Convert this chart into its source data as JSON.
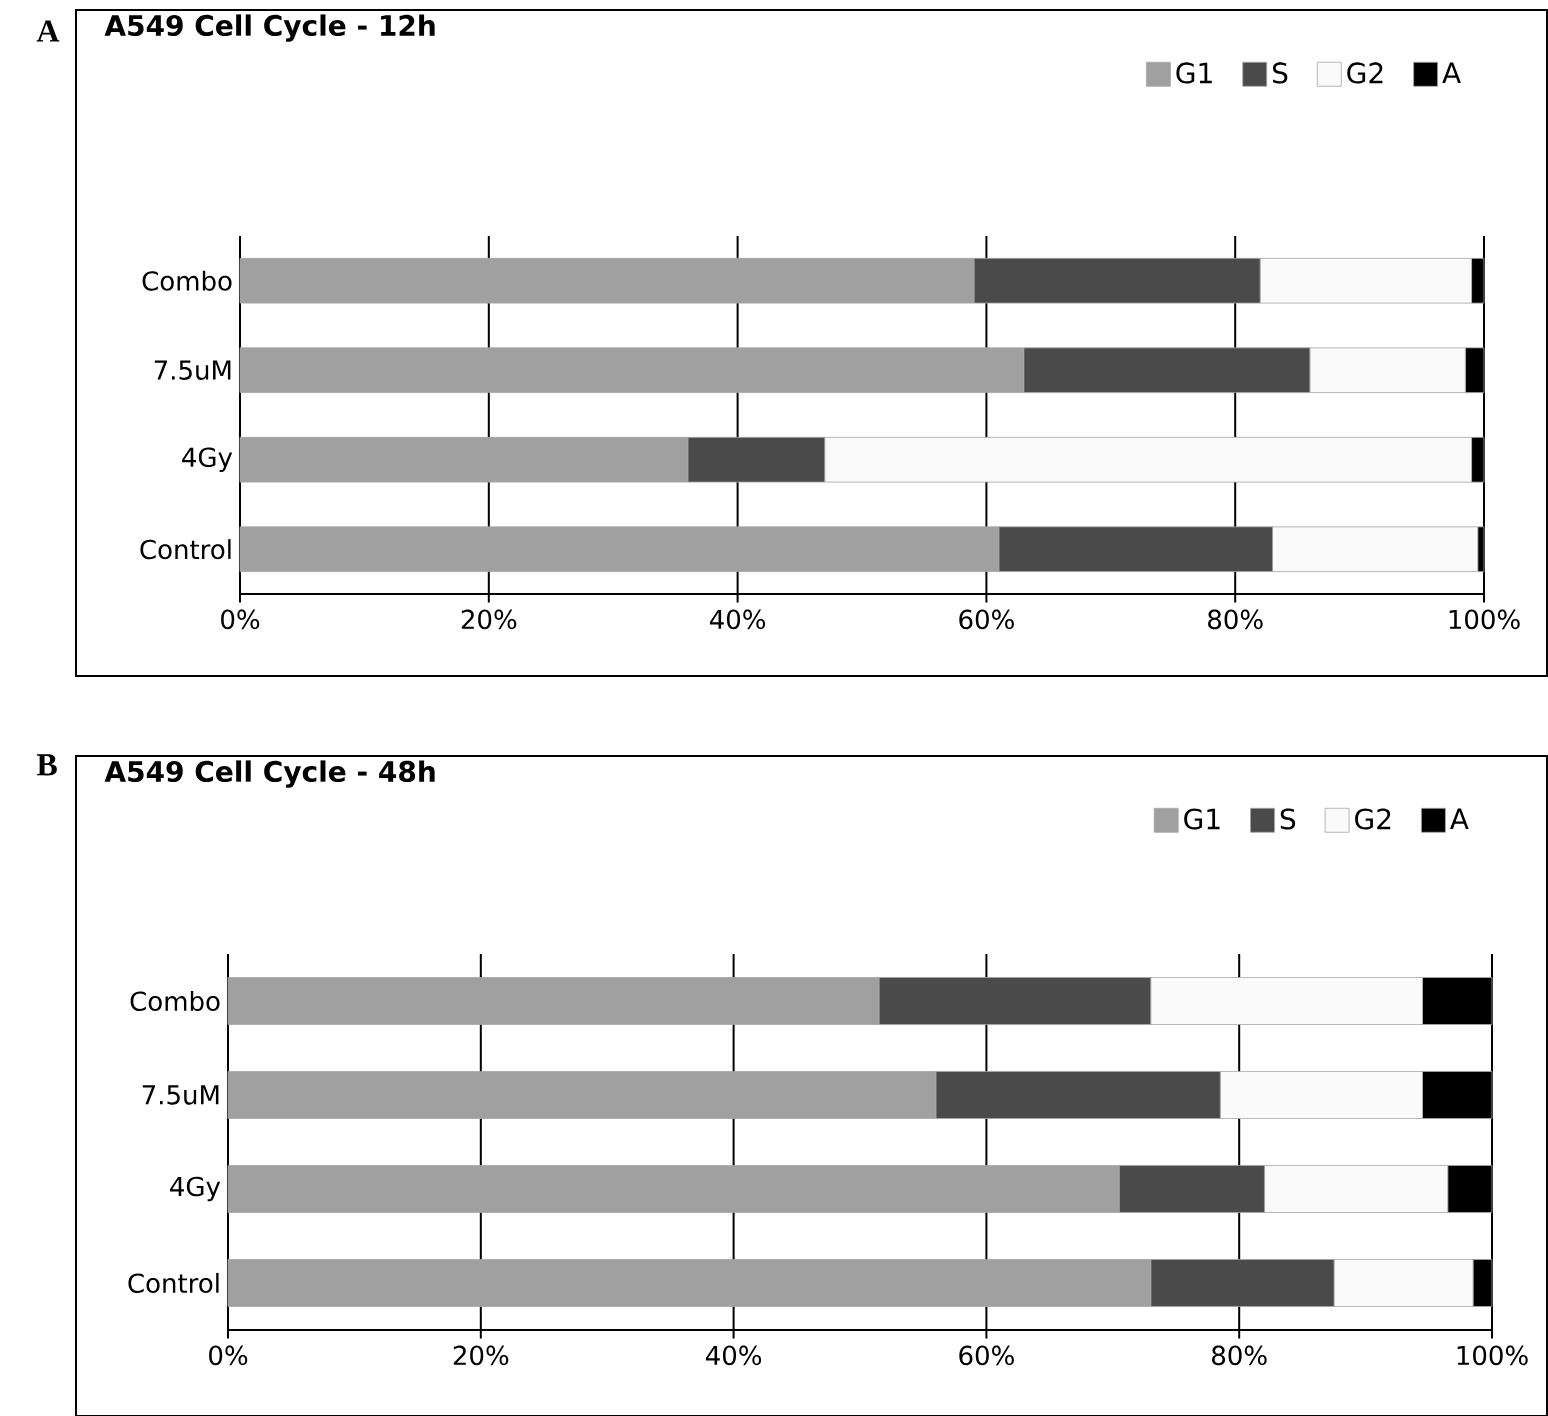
{
  "chart_data": [
    {
      "type": "bar",
      "orientation": "horizontal",
      "stacked": true,
      "title": "A549 Cell Cycle - 12h",
      "annotations": [
        "A"
      ],
      "categories": [
        "Combo",
        "7.5uM",
        "4Gy",
        "Control"
      ],
      "series": [
        {
          "name": "G1",
          "color": "#a0a0a0",
          "values": [
            59,
            63,
            36,
            61
          ]
        },
        {
          "name": "S",
          "color": "#4a4a4a",
          "values": [
            23,
            23,
            11,
            22
          ]
        },
        {
          "name": "G2",
          "color": "#fafafa",
          "values": [
            17,
            12.5,
            52,
            16.5
          ]
        },
        {
          "name": "A",
          "color": "#000000",
          "values": [
            1,
            1.5,
            1,
            0.5
          ]
        }
      ],
      "xlim": [
        0,
        100
      ],
      "xticks": [
        {
          "value": 0,
          "label": "0%"
        },
        {
          "value": 20,
          "label": "20%"
        },
        {
          "value": 40,
          "label": "40%"
        },
        {
          "value": 60,
          "label": "60%"
        },
        {
          "value": 80,
          "label": "80%"
        },
        {
          "value": 100,
          "label": "100%"
        }
      ],
      "grid": "x",
      "legend": "top right"
    },
    {
      "type": "bar",
      "orientation": "horizontal",
      "stacked": true,
      "title": "A549 Cell Cycle - 48h",
      "annotations": [
        "B"
      ],
      "categories": [
        "Combo",
        "7.5uM",
        "4Gy",
        "Control"
      ],
      "series": [
        {
          "name": "G1",
          "color": "#a0a0a0",
          "values": [
            51.5,
            56,
            70.5,
            73
          ]
        },
        {
          "name": "S",
          "color": "#4a4a4a",
          "values": [
            21.5,
            22.5,
            11.5,
            14.5
          ]
        },
        {
          "name": "G2",
          "color": "#fafafa",
          "values": [
            21.5,
            16,
            14.5,
            11
          ]
        },
        {
          "name": "A",
          "color": "#000000",
          "values": [
            5.5,
            5.5,
            3.5,
            1.5
          ]
        }
      ],
      "xlim": [
        0,
        100
      ],
      "xticks": [
        {
          "value": 0,
          "label": "0%"
        },
        {
          "value": 20,
          "label": "20%"
        },
        {
          "value": 40,
          "label": "40%"
        },
        {
          "value": 60,
          "label": "60%"
        },
        {
          "value": 80,
          "label": "80%"
        },
        {
          "value": 100,
          "label": "100%"
        }
      ],
      "grid": "x",
      "legend": "top right"
    }
  ]
}
